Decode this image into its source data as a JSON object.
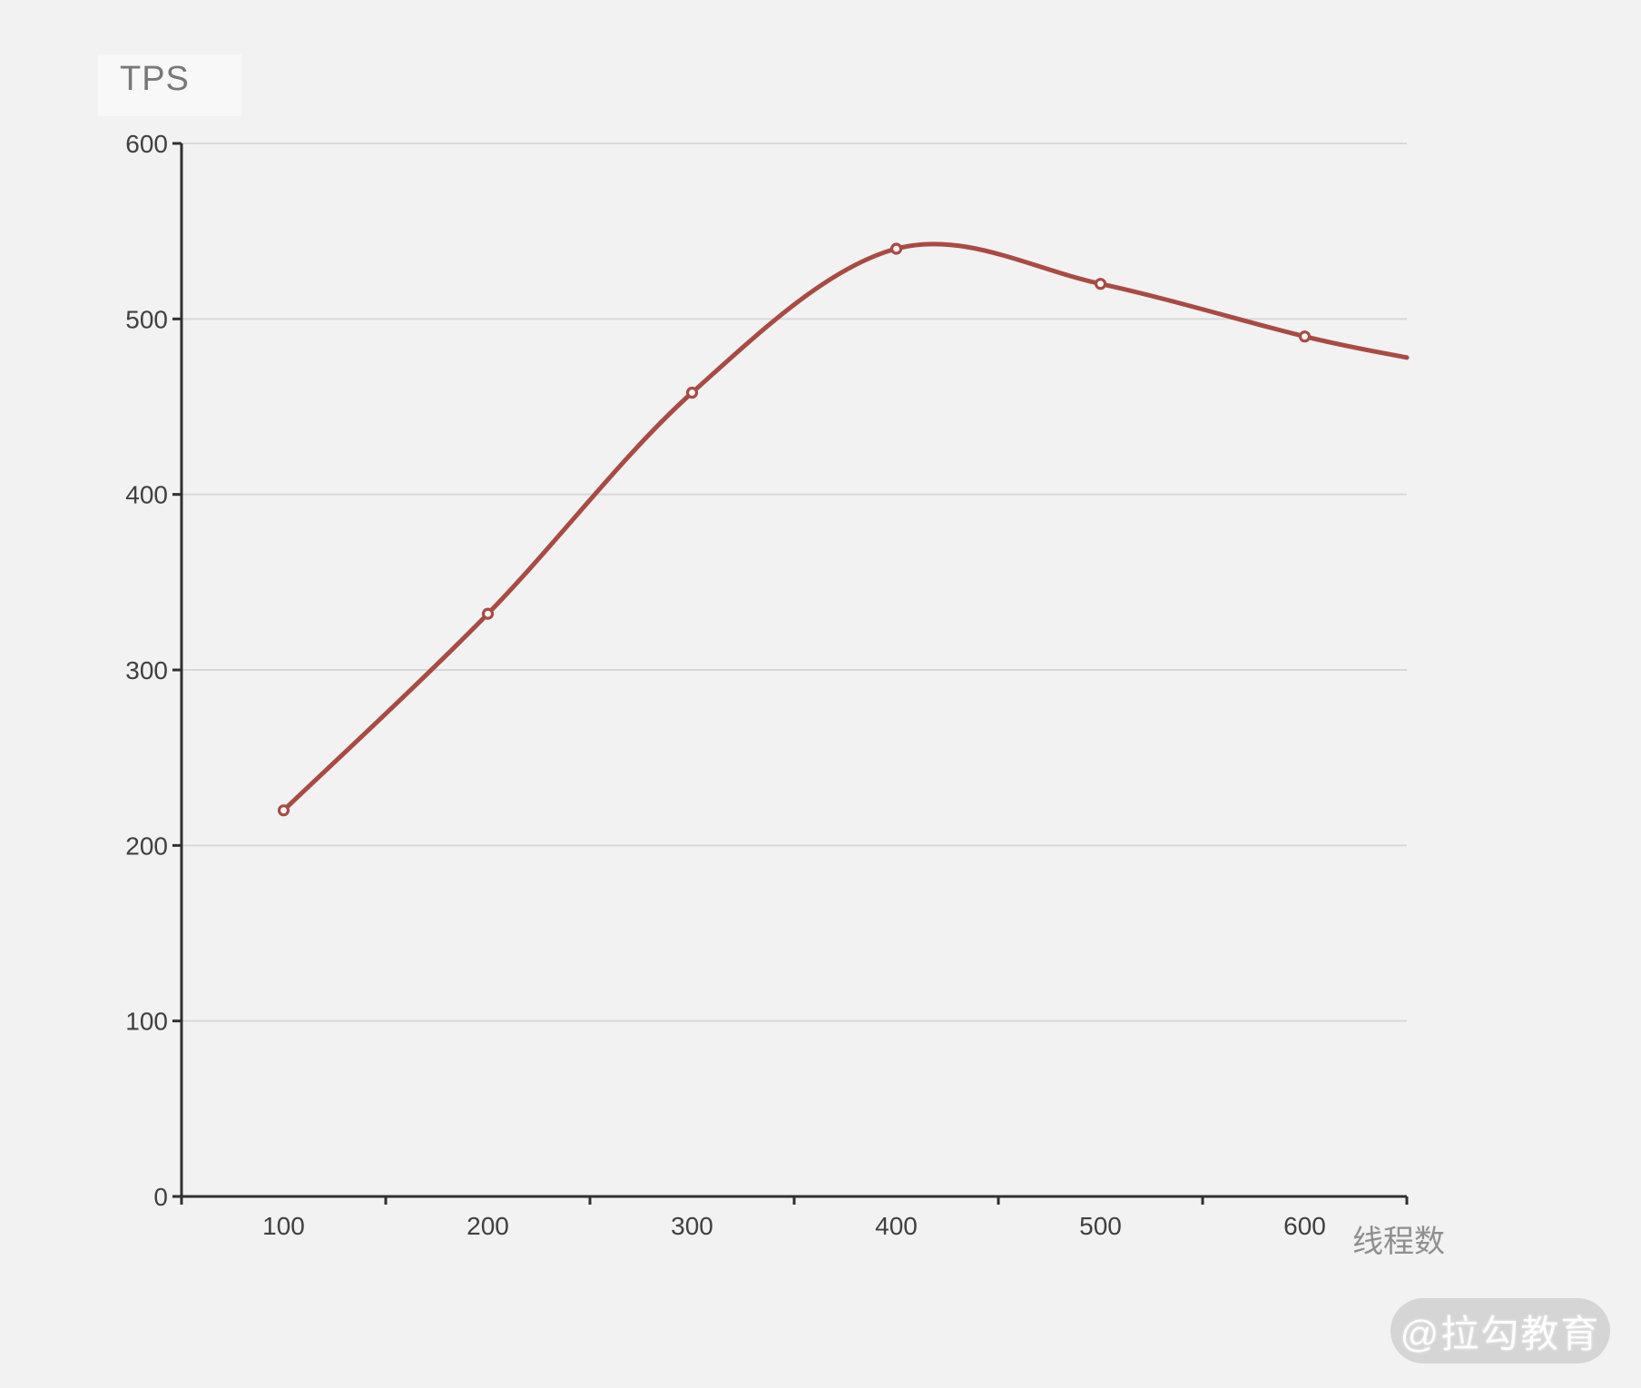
{
  "chart_data": {
    "type": "line",
    "title": "TPS",
    "xlabel": "线程数",
    "ylabel": "",
    "x": [
      100,
      200,
      300,
      400,
      500,
      600
    ],
    "values": [
      220,
      332,
      458,
      540,
      520,
      490
    ],
    "line_continues_to": {
      "x": 650,
      "value": 478
    },
    "x_tick_labels": [
      "100",
      "200",
      "300",
      "400",
      "500",
      "600"
    ],
    "y_tick_labels": [
      "0",
      "100",
      "200",
      "300",
      "400",
      "500",
      "600"
    ],
    "x_boundary_ticks": [
      150,
      250,
      350,
      450,
      550,
      650
    ],
    "xlim": [
      50,
      650
    ],
    "ylim": [
      0,
      600
    ],
    "y_tick_interval": 100,
    "grid": "horizontal-only",
    "smooth": true,
    "legend": "none",
    "marker": "hollow-circle",
    "colors": {
      "line": "#a94b42",
      "marker_fill": "#fbfbfb",
      "grid": "#d8d8d8",
      "axis": "#303030",
      "tick_label": "#404040",
      "title": "#787878",
      "xlabel": "#8f8f8f",
      "background": "#f2f2f3",
      "watermark_bg": "#d5d5d5",
      "watermark_text": "#ffffff"
    }
  },
  "watermark": {
    "text": "@拉勾教育"
  }
}
